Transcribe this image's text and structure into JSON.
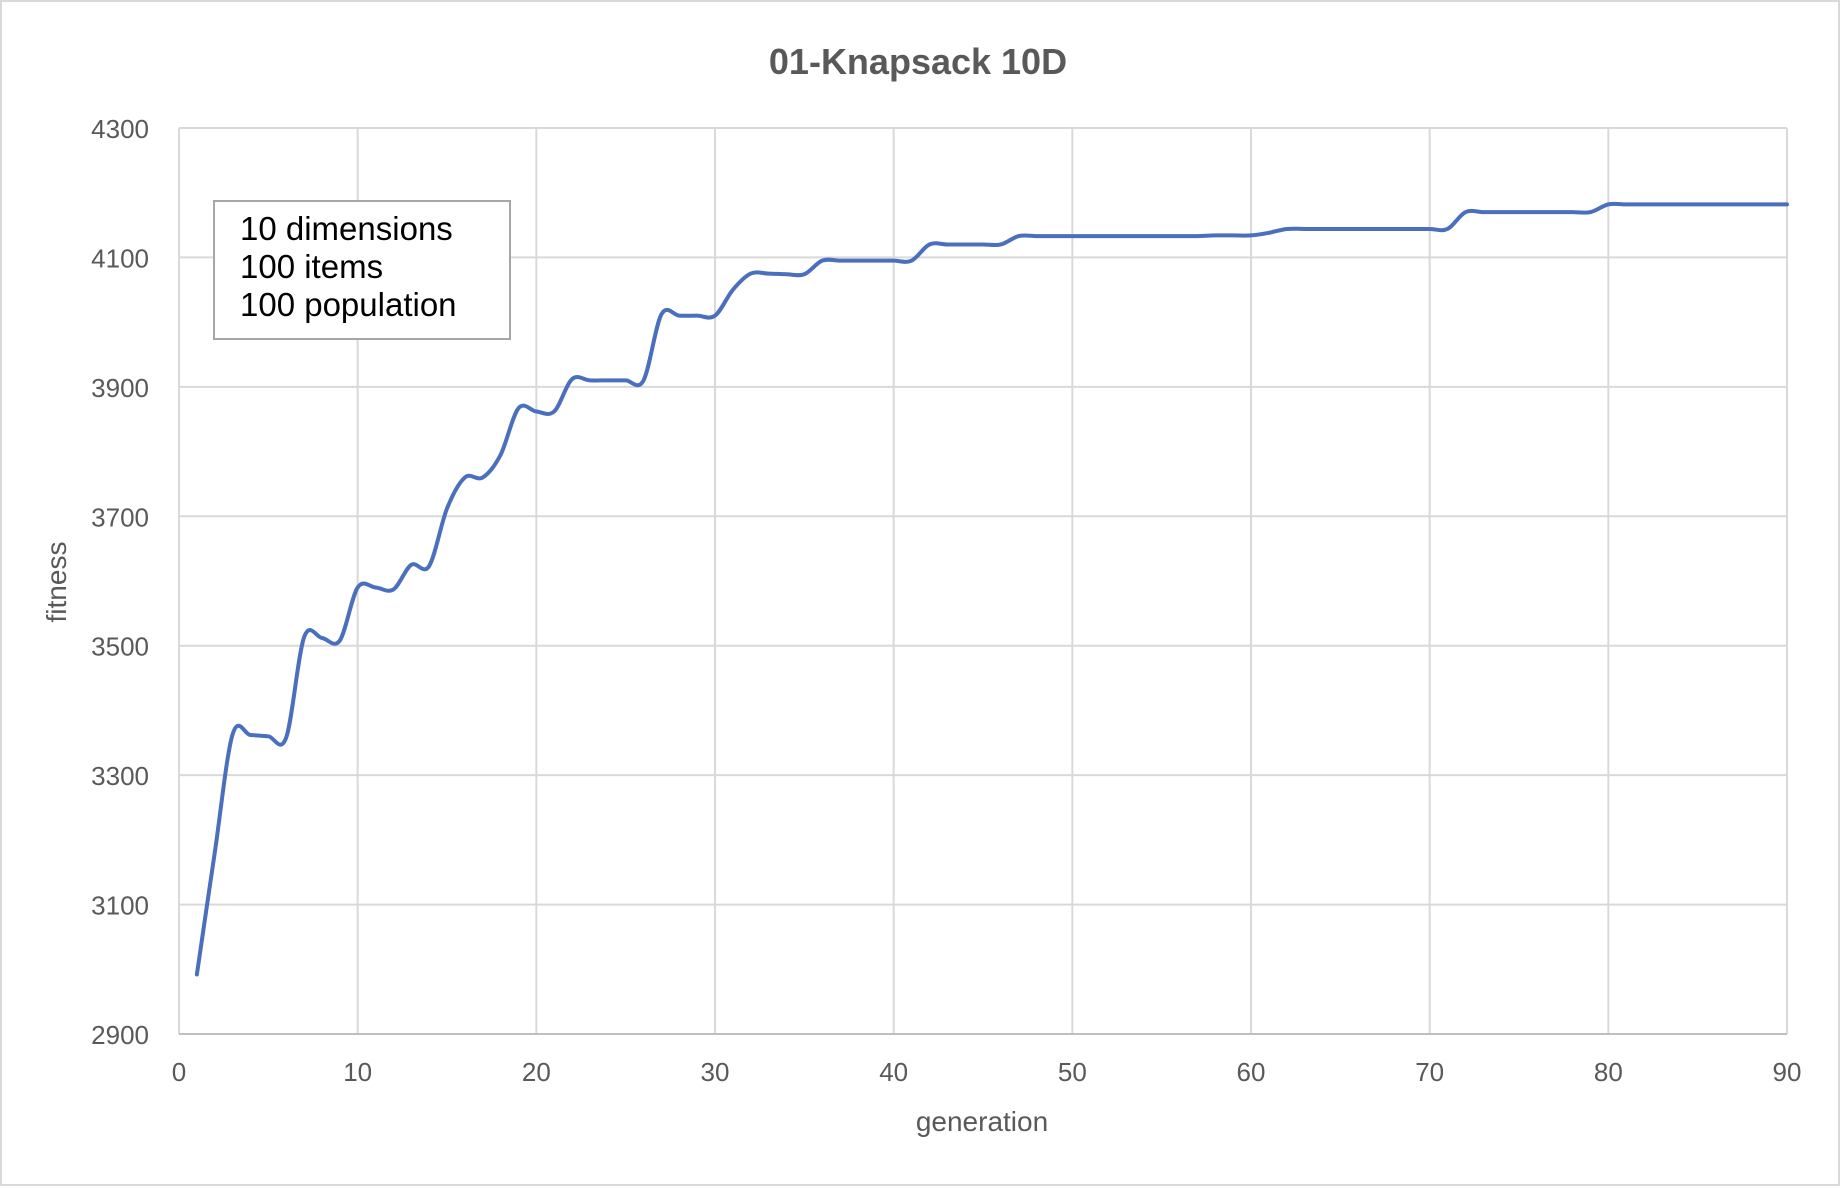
{
  "chart_data": {
    "type": "line",
    "title": "01-Knapsack 10D",
    "xlabel": "generation",
    "ylabel": "fitness",
    "xlim": [
      0,
      90
    ],
    "ylim": [
      2900,
      4300
    ],
    "xticks": [
      0,
      10,
      20,
      30,
      40,
      50,
      60,
      70,
      80,
      90
    ],
    "yticks": [
      2900,
      3100,
      3300,
      3500,
      3700,
      3900,
      4100,
      4300
    ],
    "grid": true,
    "legend": "none",
    "line_color": "#4a6fbd",
    "annotation": {
      "lines": [
        "10 dimensions",
        "100 items",
        "100 population"
      ],
      "placement": "top-left"
    },
    "series": [
      {
        "x": [
          1,
          2,
          3,
          4,
          5,
          6,
          7,
          8,
          9,
          10,
          11,
          12,
          13,
          14,
          15,
          16,
          17,
          18,
          19,
          20,
          21,
          22,
          23,
          24,
          25,
          26,
          27,
          28,
          29,
          30,
          31,
          32,
          33,
          34,
          35,
          36,
          37,
          38,
          39,
          40,
          41,
          42,
          43,
          44,
          45,
          46,
          47,
          48,
          49,
          50,
          51,
          52,
          53,
          54,
          55,
          56,
          57,
          58,
          59,
          60,
          61,
          62,
          63,
          64,
          65,
          66,
          67,
          68,
          69,
          70,
          71,
          72,
          73,
          74,
          75,
          76,
          77,
          78,
          79,
          80,
          81,
          82,
          83,
          84,
          85,
          86,
          87,
          88,
          89,
          90
        ],
        "values": [
          2992,
          3180,
          3363,
          3362,
          3360,
          3358,
          3513,
          3512,
          3508,
          3590,
          3590,
          3587,
          3625,
          3623,
          3712,
          3760,
          3760,
          3795,
          3867,
          3862,
          3862,
          3912,
          3910,
          3910,
          3910,
          3910,
          4012,
          4010,
          4010,
          4010,
          4050,
          4075,
          4075,
          4074,
          4074,
          4095,
          4095,
          4095,
          4095,
          4095,
          4095,
          4120,
          4120,
          4120,
          4120,
          4120,
          4133,
          4133,
          4133,
          4133,
          4133,
          4133,
          4133,
          4133,
          4133,
          4133,
          4133,
          4134,
          4134,
          4134,
          4138,
          4144,
          4144,
          4144,
          4144,
          4144,
          4144,
          4144,
          4144,
          4144,
          4144,
          4170,
          4170,
          4170,
          4170,
          4170,
          4170,
          4170,
          4170,
          4182,
          4182,
          4182,
          4182,
          4182,
          4182,
          4182,
          4182,
          4182,
          4182,
          4182
        ]
      }
    ]
  }
}
